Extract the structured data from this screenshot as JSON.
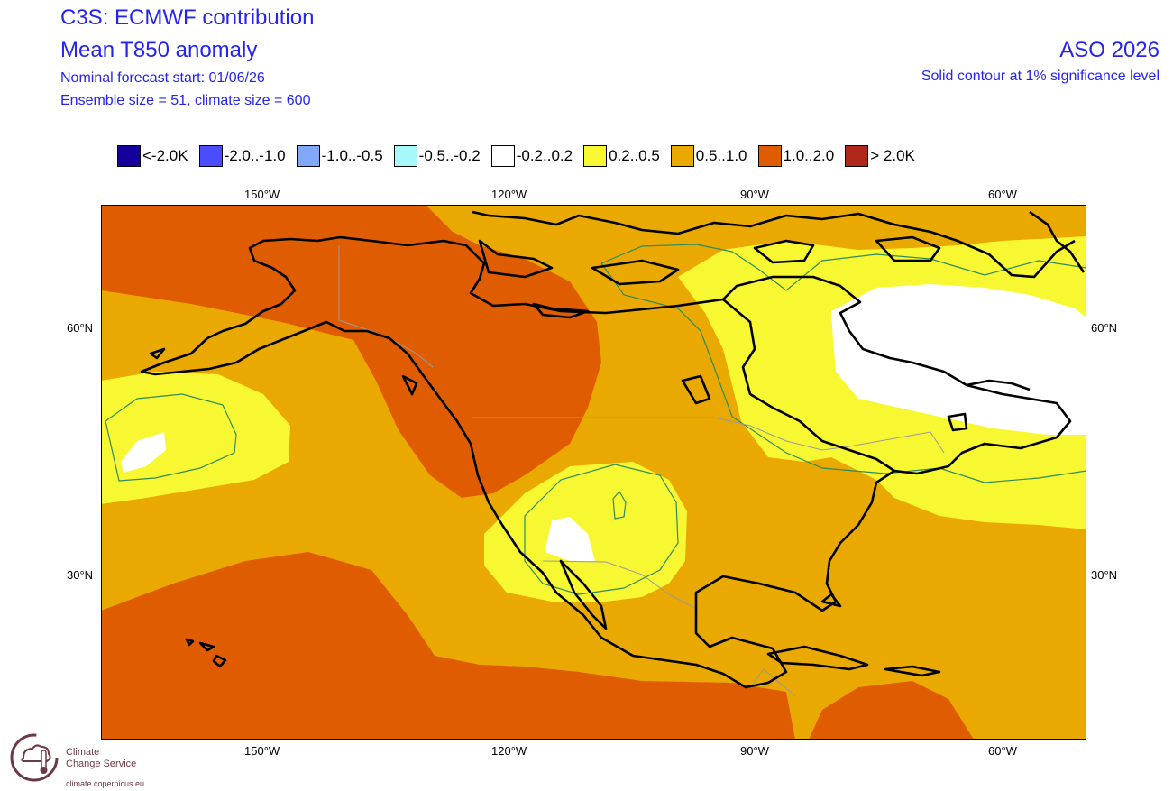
{
  "header": {
    "title_line1": "C3S: ECMWF contribution",
    "title_line2": "Mean T850 anomaly",
    "forecast_start": "Nominal forecast start: 01/06/26",
    "ensemble_info": "Ensemble size = 51, climate size = 600",
    "period": "ASO 2026",
    "significance_note": "Solid contour at 1% significance level"
  },
  "legend": [
    {
      "label": "<-2.0K",
      "color": "#14009a"
    },
    {
      "label": "-2.0..-1.0",
      "color": "#4c4cff"
    },
    {
      "label": "-1.0..-0.5",
      "color": "#80a8f6"
    },
    {
      "label": "-0.5..-0.2",
      "color": "#a6f8fa"
    },
    {
      "label": "-0.2..0.2",
      "color": "#ffffff"
    },
    {
      "label": "0.2..0.5",
      "color": "#f8f832"
    },
    {
      "label": "0.5..1.0",
      "color": "#e9a900"
    },
    {
      "label": "1.0..2.0",
      "color": "#e05c00"
    },
    {
      "label": "> 2.0K",
      "color": "#b0281a"
    }
  ],
  "axes": {
    "lon_labels": [
      "150°W",
      "120°W",
      "90°W",
      "60°W"
    ],
    "lat_labels": [
      "60°N",
      "30°N"
    ]
  },
  "map": {
    "background_color": "#e9a900",
    "region": "North America and Northeast Pacific"
  },
  "logo": {
    "line1": "Climate",
    "line2": "Change Service",
    "url": "climate.copernicus.eu",
    "logo_color": "#6b3a46"
  }
}
